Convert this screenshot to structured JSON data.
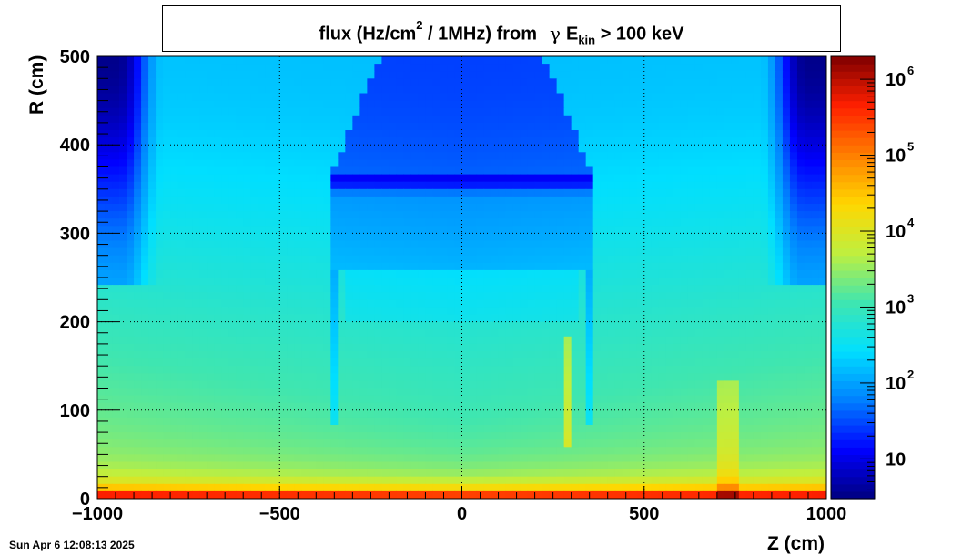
{
  "chart_data": {
    "type": "heatmap",
    "title": {
      "prefix": "flux (Hz/cm",
      "superscript": "2",
      "middle": "/ 1MHz) from",
      "greek": "γ",
      "variable": "E",
      "subscript": "kin",
      "suffix": "> 100 keV"
    },
    "xlabel": "Z (cm)",
    "ylabel": "R (cm)",
    "xlim": [
      -1000,
      1000
    ],
    "ylim": [
      0,
      500
    ],
    "zscale": "log",
    "zlim": [
      3,
      2000000
    ],
    "x_ticks": [
      {
        "value": -1000,
        "label": "−1000"
      },
      {
        "value": -500,
        "label": "−500"
      },
      {
        "value": 0,
        "label": "0"
      },
      {
        "value": 500,
        "label": "500"
      },
      {
        "value": 1000,
        "label": "1000"
      }
    ],
    "y_ticks": [
      {
        "value": 0,
        "label": "0"
      },
      {
        "value": 100,
        "label": "100"
      },
      {
        "value": 200,
        "label": "200"
      },
      {
        "value": 300,
        "label": "300"
      },
      {
        "value": 400,
        "label": "400"
      },
      {
        "value": 500,
        "label": "500"
      }
    ],
    "z_ticks": [
      {
        "value": 10,
        "base": "10",
        "exp": ""
      },
      {
        "value": 100,
        "base": "10",
        "exp": "2"
      },
      {
        "value": 1000,
        "base": "10",
        "exp": "3"
      },
      {
        "value": 10000,
        "base": "10",
        "exp": "4"
      },
      {
        "value": 100000,
        "base": "10",
        "exp": "5"
      },
      {
        "value": 1000000,
        "base": "10",
        "exp": "6"
      }
    ],
    "grid": true,
    "colormap": "jet",
    "colors": [
      "#00007f",
      "#0000ff",
      "#007fff",
      "#00dfff",
      "#3fe6b0",
      "#bfef3f",
      "#ffd700",
      "#ff7f00",
      "#ff2000",
      "#7f0000"
    ]
  },
  "timestamp": "Sun Apr  6 12:08:13 2025"
}
